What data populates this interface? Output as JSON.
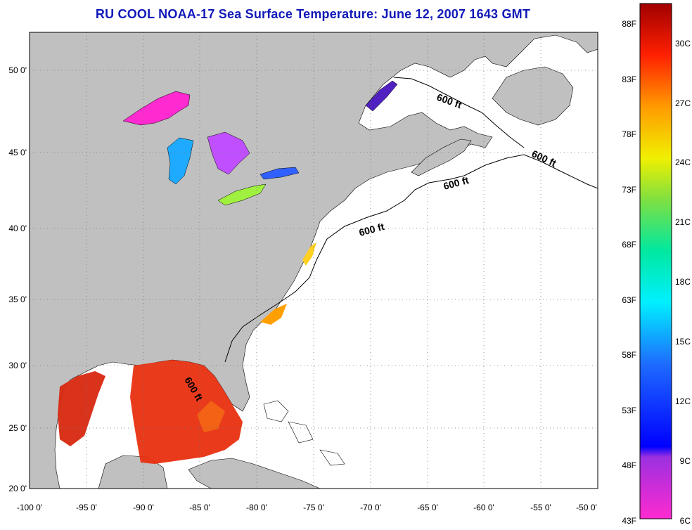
{
  "title": "RU COOL  NOAA-17  Sea Surface Temperature:  June 12, 2007 1643 GMT",
  "map": {
    "lon_range": [
      -100,
      -50
    ],
    "lat_range": [
      20,
      52
    ],
    "lon_ticks": [
      "-100 0'",
      "-95 0'",
      "-90 0'",
      "-85 0'",
      "-80 0'",
      "-75 0'",
      "-70 0'",
      "-65 0'",
      "-60 0'",
      "-55 0'",
      "-50 0'"
    ],
    "lat_ticks": [
      "20 0'",
      "25 0'",
      "30 0'",
      "35 0'",
      "40 0'",
      "45 0'",
      "50 0'"
    ],
    "contour_labels": [
      "600 ft",
      "600 ft",
      "600 ft",
      "600 ft",
      "600 ft"
    ],
    "land_color": "#c0c0c0",
    "ocean_color": "#ffffff",
    "grid": "dotted"
  },
  "colorbar": {
    "fahrenheit_labels": [
      "88F",
      "83F",
      "78F",
      "73F",
      "68F",
      "63F",
      "58F",
      "53F",
      "48F",
      "43F"
    ],
    "celsius_labels": [
      "30C",
      "27C",
      "24C",
      "21C",
      "18C",
      "15C",
      "12C",
      "9C",
      "6C"
    ]
  }
}
